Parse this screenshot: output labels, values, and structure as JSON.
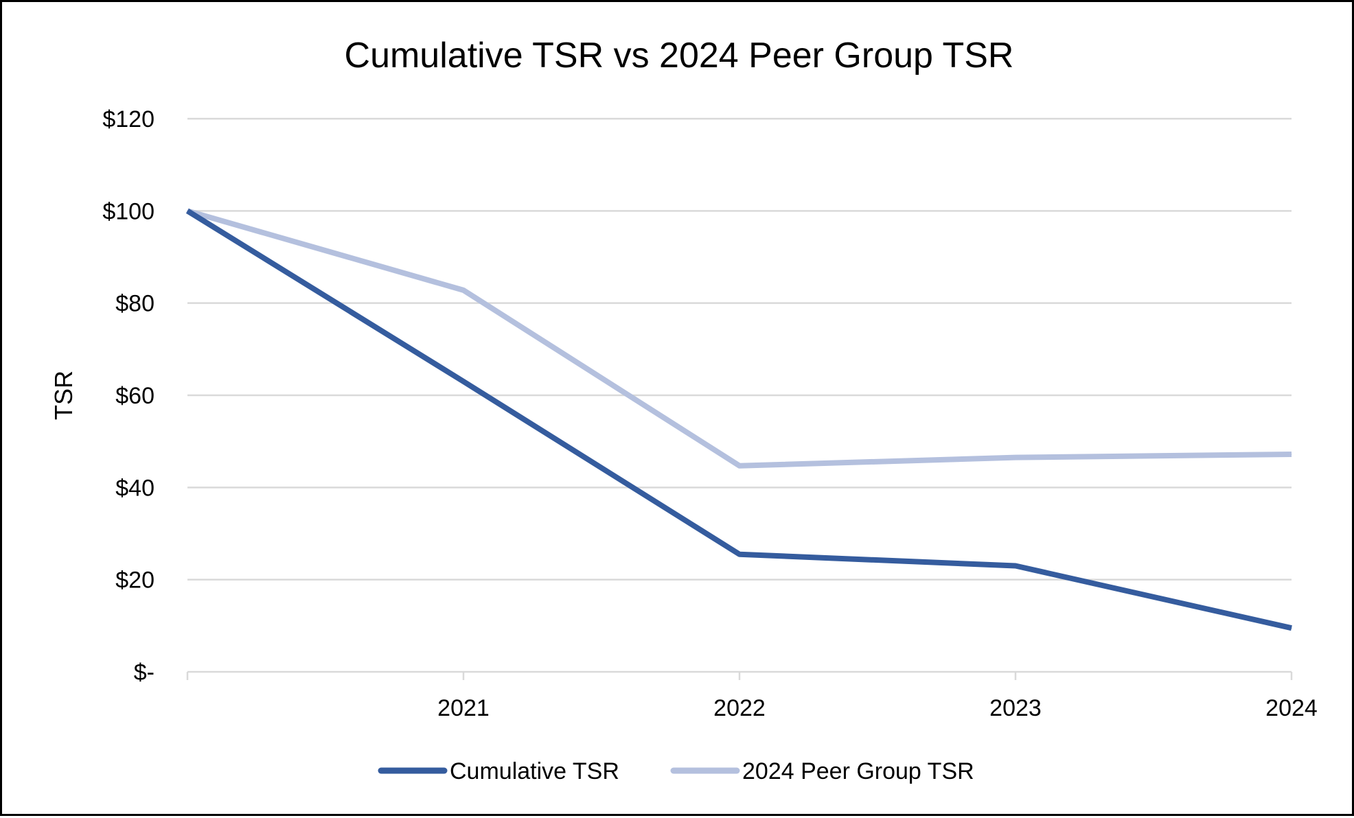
{
  "chart_data": {
    "type": "line",
    "title": "Cumulative TSR vs 2024 Peer Group TSR",
    "xlabel": "",
    "ylabel": "TSR",
    "categories": [
      "",
      "2021",
      "2022",
      "2023",
      "2024"
    ],
    "ylim": [
      0,
      120
    ],
    "yticks": [
      0,
      20,
      40,
      60,
      80,
      100,
      120
    ],
    "ytick_labels": [
      "$-",
      "$20",
      "$40",
      "$60",
      "$80",
      "$100",
      "$120"
    ],
    "grid": true,
    "legend_position": "bottom",
    "series": [
      {
        "name": "Cumulative TSR",
        "color": "#355C9E",
        "values": [
          100,
          63,
          25.5,
          23,
          9.5
        ]
      },
      {
        "name": "2024 Peer Group TSR",
        "color": "#B4C0DE",
        "values": [
          100,
          82.8,
          44.7,
          46.5,
          47.2
        ]
      }
    ],
    "gridline_color": "#D9D9D9"
  }
}
